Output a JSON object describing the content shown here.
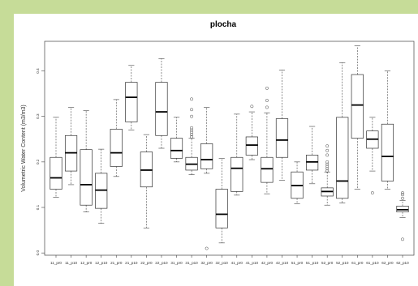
{
  "chart_data": {
    "type": "box",
    "title": "plocha",
    "xlabel": "",
    "ylabel": "Volumetric Water Content (m3/m3)",
    "ylim": [
      -0.005,
      0.465
    ],
    "yticks": [
      0.0,
      0.1,
      0.2,
      0.3,
      0.4
    ],
    "ytick_labels": [
      "0.0",
      "0.1",
      "0.2",
      "0.3",
      "0.4"
    ],
    "grid": false,
    "categories": [
      "11_pr0",
      "11_p10",
      "12_pr0",
      "12_p10",
      "21_pr0",
      "21_p10",
      "22_pr0",
      "22_p10",
      "31_pr0",
      "31_p10",
      "32_pr0",
      "32_p10",
      "41_pr0",
      "41_p10",
      "42_pr0",
      "42_p10",
      "51_pr0",
      "51_p10",
      "52_pr0",
      "52_p10",
      "61_pr0",
      "61_p10",
      "62_pr0",
      "62_p10"
    ],
    "boxes": [
      {
        "whislo": 0.122,
        "q1": 0.14,
        "med": 0.165,
        "q3": 0.21,
        "whishi": 0.298,
        "outliers": []
      },
      {
        "whislo": 0.15,
        "q1": 0.18,
        "med": 0.22,
        "q3": 0.258,
        "whishi": 0.32,
        "outliers": []
      },
      {
        "whislo": 0.09,
        "q1": 0.105,
        "med": 0.15,
        "q3": 0.227,
        "whishi": 0.313,
        "outliers": []
      },
      {
        "whislo": 0.065,
        "q1": 0.098,
        "med": 0.138,
        "q3": 0.175,
        "whishi": 0.228,
        "outliers": []
      },
      {
        "whislo": 0.168,
        "q1": 0.19,
        "med": 0.22,
        "q3": 0.272,
        "whishi": 0.337,
        "outliers": []
      },
      {
        "whislo": 0.27,
        "q1": 0.288,
        "med": 0.342,
        "q3": 0.375,
        "whishi": 0.412,
        "outliers": []
      },
      {
        "whislo": 0.055,
        "q1": 0.145,
        "med": 0.182,
        "q3": 0.222,
        "whishi": 0.26,
        "outliers": []
      },
      {
        "whislo": 0.23,
        "q1": 0.258,
        "med": 0.31,
        "q3": 0.375,
        "whishi": 0.427,
        "outliers": []
      },
      {
        "whislo": 0.2,
        "q1": 0.208,
        "med": 0.225,
        "q3": 0.252,
        "whishi": 0.298,
        "outliers": []
      },
      {
        "whislo": 0.172,
        "q1": 0.182,
        "med": 0.195,
        "q3": 0.21,
        "whishi": 0.252,
        "outliers": [
          0.255,
          0.26,
          0.265,
          0.27,
          0.275,
          0.3,
          0.315,
          0.338
        ]
      },
      {
        "whislo": 0.175,
        "q1": 0.185,
        "med": 0.205,
        "q3": 0.24,
        "whishi": 0.32,
        "outliers": [
          0.01
        ]
      },
      {
        "whislo": 0.022,
        "q1": 0.055,
        "med": 0.085,
        "q3": 0.14,
        "whishi": 0.208,
        "outliers": []
      },
      {
        "whislo": 0.127,
        "q1": 0.135,
        "med": 0.186,
        "q3": 0.21,
        "whishi": 0.305,
        "outliers": []
      },
      {
        "whislo": 0.205,
        "q1": 0.215,
        "med": 0.237,
        "q3": 0.255,
        "whishi": 0.31,
        "outliers": [
          0.322
        ]
      },
      {
        "whislo": 0.13,
        "q1": 0.155,
        "med": 0.185,
        "q3": 0.21,
        "whishi": 0.308,
        "outliers": [
          0.32,
          0.335,
          0.362
        ]
      },
      {
        "whislo": 0.16,
        "q1": 0.21,
        "med": 0.248,
        "q3": 0.295,
        "whishi": 0.402,
        "outliers": []
      },
      {
        "whislo": 0.108,
        "q1": 0.12,
        "med": 0.148,
        "q3": 0.178,
        "whishi": 0.2,
        "outliers": []
      },
      {
        "whislo": 0.152,
        "q1": 0.182,
        "med": 0.2,
        "q3": 0.215,
        "whishi": 0.278,
        "outliers": []
      },
      {
        "whislo": 0.105,
        "q1": 0.125,
        "med": 0.135,
        "q3": 0.143,
        "whishi": 0.178,
        "outliers": [
          0.18,
          0.185,
          0.19,
          0.195,
          0.2,
          0.215,
          0.225,
          0.235
        ]
      },
      {
        "whislo": 0.11,
        "q1": 0.12,
        "med": 0.158,
        "q3": 0.298,
        "whishi": 0.418,
        "outliers": []
      },
      {
        "whislo": 0.14,
        "q1": 0.252,
        "med": 0.325,
        "q3": 0.392,
        "whishi": 0.455,
        "outliers": []
      },
      {
        "whislo": 0.18,
        "q1": 0.23,
        "med": 0.25,
        "q3": 0.268,
        "whishi": 0.298,
        "outliers": [
          0.132
        ]
      },
      {
        "whislo": 0.14,
        "q1": 0.158,
        "med": 0.212,
        "q3": 0.283,
        "whishi": 0.4,
        "outliers": []
      },
      {
        "whislo": 0.078,
        "q1": 0.09,
        "med": 0.095,
        "q3": 0.103,
        "whishi": 0.115,
        "outliers": [
          0.03,
          0.12,
          0.128,
          0.132
        ]
      }
    ]
  }
}
